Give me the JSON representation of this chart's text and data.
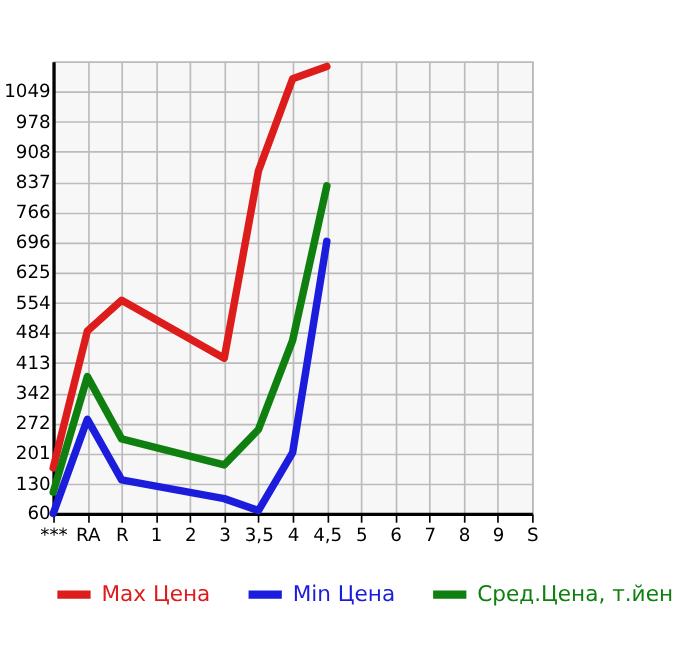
{
  "chart_data": {
    "type": "line",
    "categories": [
      "***",
      "RA",
      "R",
      "1",
      "2",
      "3",
      "3,5",
      "4",
      "4,5",
      "5",
      "6",
      "7",
      "8",
      "9",
      "S"
    ],
    "series": [
      {
        "name": "Max Цена",
        "color": "#dd1c1c",
        "values": [
          167,
          488,
          560,
          null,
          null,
          424,
          863,
          1079,
          1108,
          null,
          null,
          null,
          null,
          null,
          null
        ]
      },
      {
        "name": "Min Цена",
        "color": "#1c1cdd",
        "values": [
          60,
          281,
          139,
          null,
          null,
          95,
          67,
          203,
          698,
          null,
          null,
          null,
          null,
          null,
          null
        ]
      },
      {
        "name": "Сред.Цена, т.йен",
        "color": "#0f7f0f",
        "values": [
          110,
          381,
          235,
          null,
          null,
          174,
          257,
          466,
          828,
          null,
          null,
          null,
          null,
          null,
          null
        ]
      }
    ],
    "ylim": [
      60,
      1120
    ],
    "yticks": [
      60,
      130,
      201,
      272,
      342,
      413,
      484,
      554,
      625,
      696,
      766,
      837,
      908,
      978,
      1049
    ],
    "grid": true,
    "legend": "bottom",
    "marker": "none",
    "line_style": "solid"
  }
}
